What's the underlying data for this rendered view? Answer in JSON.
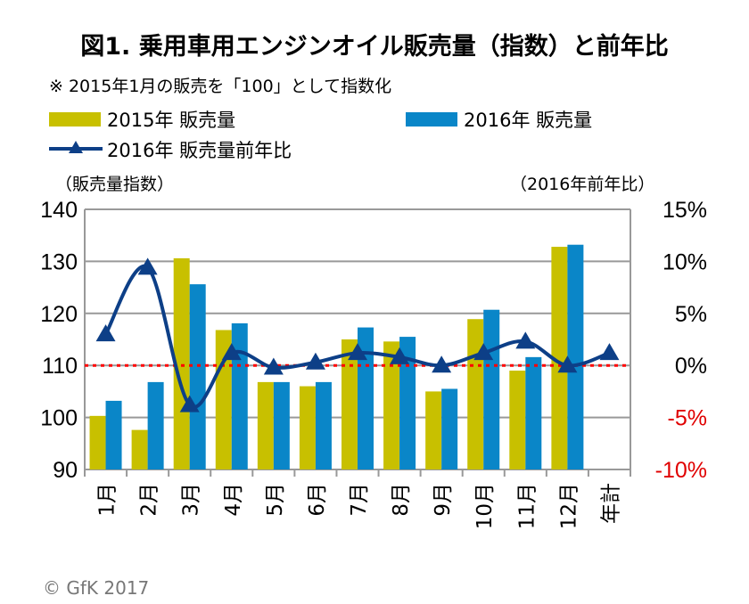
{
  "chart_data": {
    "type": "bar",
    "title": "図1. 乗用車用エンジンオイル販売量（指数）と前年比",
    "subtitle": "※ 2015年1月の販売を「100」として指数化",
    "ylabel": "（販売量指数）",
    "y2label": "（2016年前年比）",
    "ylim": [
      90,
      140
    ],
    "y2lim": [
      -10,
      15
    ],
    "yticks": [
      "140",
      "130",
      "120",
      "110",
      "100",
      "90"
    ],
    "y2ticks": [
      "15%",
      "10%",
      "5%",
      "0%",
      "-5%",
      "-10%"
    ],
    "categories": [
      "1月",
      "2月",
      "3月",
      "4月",
      "5月",
      "6月",
      "7月",
      "8月",
      "9月",
      "10月",
      "11月",
      "12月",
      "年計"
    ],
    "series": [
      {
        "name": "2015年 販売量",
        "type": "bar",
        "color": "#c8c000",
        "values": [
          100.3,
          97.6,
          130.6,
          116.8,
          106.8,
          106.0,
          115.0,
          114.6,
          105.0,
          118.9,
          109.0,
          132.8,
          null
        ]
      },
      {
        "name": "2016年 販売量",
        "type": "bar",
        "color": "#0a86c8",
        "values": [
          103.2,
          106.8,
          125.6,
          118.1,
          106.8,
          106.8,
          117.3,
          115.5,
          105.5,
          120.7,
          111.6,
          133.2,
          null
        ]
      },
      {
        "name": "2016年 販売量前年比",
        "type": "line",
        "axis": "right",
        "color": "#0d3f87",
        "values": [
          3.0,
          9.4,
          -3.8,
          1.2,
          -0.2,
          0.3,
          1.2,
          0.8,
          0.0,
          1.2,
          2.3,
          0.0,
          1.2
        ]
      }
    ],
    "grid": true,
    "legend": "top"
  },
  "copyright": "© GfK 2017"
}
